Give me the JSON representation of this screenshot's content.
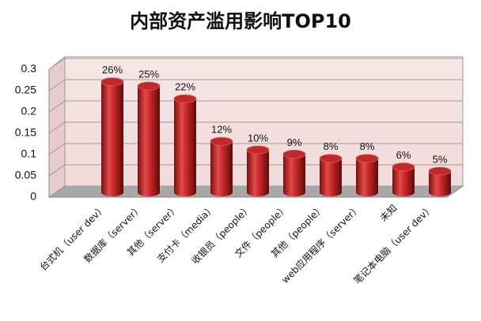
{
  "chart_data": {
    "type": "bar",
    "title": "内部资产滥用影响TOP10",
    "categories": [
      "台式机（user dev）",
      "数据库（server）",
      "其他（server）",
      "支付卡（media）",
      "收银员（people）",
      "文件（people）",
      "其他（people）",
      "web应用程序（server）",
      "未知",
      "笔记本电脑（user dev）"
    ],
    "values": [
      0.26,
      0.25,
      0.22,
      0.12,
      0.1,
      0.09,
      0.08,
      0.08,
      0.06,
      0.05
    ],
    "value_labels": [
      "26%",
      "25%",
      "22%",
      "12%",
      "10%",
      "9%",
      "8%",
      "8%",
      "6%",
      "5%"
    ],
    "color": "#c0282a",
    "ylim": [
      0,
      0.3
    ],
    "yticks": [
      0,
      0.05,
      0.1,
      0.15,
      0.2,
      0.25,
      0.3
    ],
    "grid": true
  }
}
